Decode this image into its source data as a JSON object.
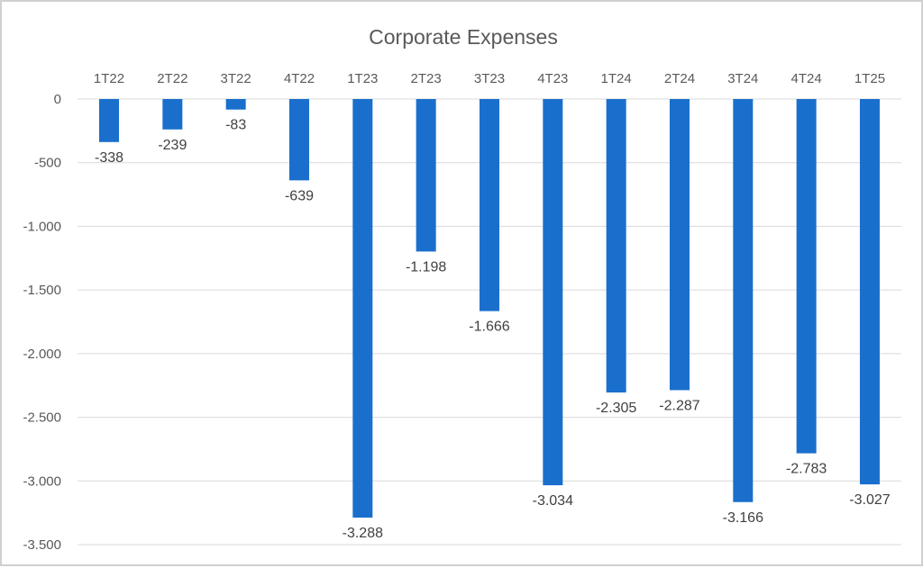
{
  "chart_data": {
    "type": "bar",
    "title": "Corporate Expenses",
    "xlabel": "",
    "ylabel": "",
    "categories": [
      "1T22",
      "2T22",
      "3T22",
      "4T22",
      "1T23",
      "2T23",
      "3T23",
      "4T23",
      "1T24",
      "2T24",
      "3T24",
      "4T24",
      "1T25"
    ],
    "values": [
      -338,
      -239,
      -83,
      -639,
      -3288,
      -1198,
      -1666,
      -3034,
      -2305,
      -2287,
      -3166,
      -2783,
      -3027
    ],
    "value_labels": [
      "-338",
      "-239",
      "-83",
      "-639",
      "-3.288",
      "-1.198",
      "-1.666",
      "-3.034",
      "-2.305",
      "-2.287",
      "-3.166",
      "-2.783",
      "-3.027"
    ],
    "ylim": [
      -3500,
      0
    ],
    "yticks": [
      0,
      -500,
      -1000,
      -1500,
      -2000,
      -2500,
      -3000,
      -3500
    ],
    "ytick_labels": [
      "0",
      "-500",
      "-1.000",
      "-1.500",
      "-2.000",
      "-2.500",
      "-3.000",
      "-3.500"
    ],
    "grid": true,
    "legend": "none",
    "bar_color": "#1a6fcc",
    "grid_color": "#d9d9d9"
  }
}
